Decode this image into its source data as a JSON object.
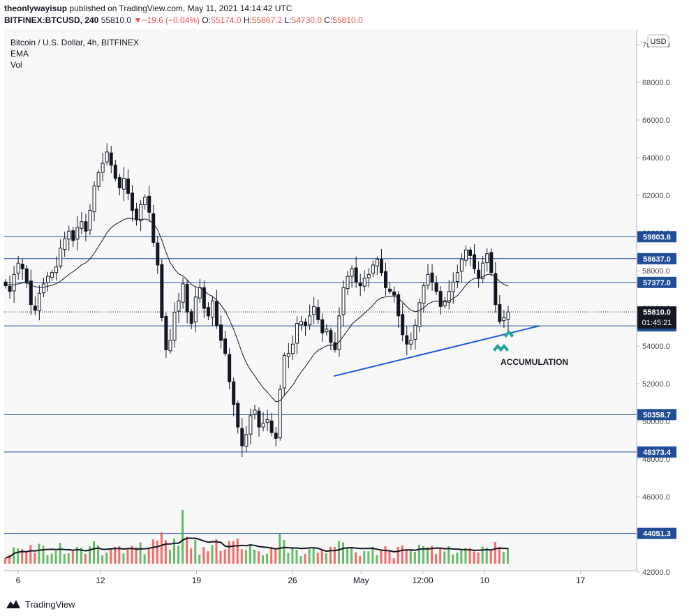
{
  "header": {
    "author": "theonlywayisup",
    "published_text": "published on TradingView.com, May 11, 2021 14:14:42 UTC",
    "symbol": "BITFINEX:BTCUSD, 240",
    "last": "55810.0",
    "change": "−19.6 (−0.04%)",
    "o_label": "O:",
    "o": "55174.0",
    "h_label": "H:",
    "h": "55867.2",
    "l_label": "L:",
    "l": "54730.0",
    "c_label": "C:",
    "c": "55810.0"
  },
  "legend": {
    "title": "Bitcoin / U.S. Dollar, 4h, BITFINEX",
    "ema": "EMA",
    "vol": "Vol"
  },
  "currency": "USD",
  "footer": {
    "brand": "TradingView",
    "icon": "tradingview-logo-icon"
  },
  "colors": {
    "hline": "#1f4e96",
    "trendline": "#1e5bd6",
    "arrow": "#26a69a",
    "vol_up": "#4caf50",
    "vol_down": "#ef5350",
    "candle": "#131722",
    "price_label_bg": "#1f4e96",
    "last_label_bg": "#131722"
  },
  "chart_data": {
    "type": "candlestick",
    "title": "Bitcoin / U.S. Dollar, 4h, BITFINEX",
    "y_ticks": [
      "70000.0",
      "68000.0",
      "66000.0",
      "64000.0",
      "62000.0",
      "60000.0",
      "58000.0",
      "56000.0",
      "54000.0",
      "52000.0",
      "50000.0",
      "48000.0",
      "46000.0",
      "44000.0",
      "42000.0"
    ],
    "ylim": [
      42000,
      70600
    ],
    "x_ticks": [
      {
        "label": "6",
        "date": "2021-04-06"
      },
      {
        "label": "12",
        "date": "2021-04-12"
      },
      {
        "label": "19",
        "date": "2021-04-19"
      },
      {
        "label": "26",
        "date": "2021-04-26"
      },
      {
        "label": "May",
        "date": "2021-05-01"
      },
      {
        "label": "12:00",
        "date": "2021-05-05 12:00"
      },
      {
        "label": "10",
        "date": "2021-05-10"
      },
      {
        "label": "17",
        "date": "2021-05-17"
      }
    ],
    "horizontal_levels": [
      "59803.8",
      "58637.0",
      "57377.0",
      "55070.8",
      "50358.7",
      "48373.4",
      "44051.3"
    ],
    "last_price": {
      "value": "55810.0",
      "countdown": "01:45:21"
    },
    "trendline": {
      "from": {
        "date": "2021-04-29",
        "price": 52400
      },
      "to": {
        "date": "2021-05-14",
        "price": 55070
      }
    },
    "annotation": "ACCUMULATION",
    "candles_close": [
      57200,
      56900,
      57800,
      58400,
      58100,
      57400,
      56200,
      55900,
      56800,
      57300,
      57700,
      57900,
      58200,
      59200,
      59700,
      60100,
      59600,
      60300,
      60600,
      60100,
      61200,
      62500,
      63200,
      63700,
      64300,
      63600,
      62900,
      62400,
      62900,
      62100,
      61200,
      60700,
      61500,
      61900,
      61100,
      59500,
      58300,
      55500,
      53800,
      54300,
      55800,
      56400,
      57300,
      55800,
      55200,
      56600,
      57100,
      56000,
      55600,
      56400,
      55100,
      54300,
      53600,
      52100,
      50900,
      49700,
      48700,
      49300,
      50300,
      50600,
      49700,
      49900,
      50100,
      49400,
      49100,
      51700,
      53500,
      53600,
      54100,
      55200,
      55300,
      55100,
      55600,
      56100,
      55400,
      54700,
      54900,
      54200,
      53800,
      55600,
      57100,
      57700,
      58100,
      57400,
      57200,
      57600,
      57800,
      58300,
      58600,
      57900,
      57100,
      56900,
      56700,
      55600,
      54600,
      54100,
      54300,
      55100,
      56300,
      57200,
      57800,
      57400,
      56900,
      56100,
      56400,
      56900,
      57400,
      57900,
      58600,
      59100,
      58800,
      58100,
      57600,
      58400,
      58900,
      57900,
      56200,
      55300,
      55500,
      55810
    ],
    "ema_values": [
      57300,
      57250,
      57250,
      57300,
      57350,
      57350,
      57250,
      57150,
      57100,
      57120,
      57170,
      57230,
      57310,
      57450,
      57620,
      57810,
      57950,
      58120,
      58310,
      58420,
      58630,
      58930,
      59280,
      59640,
      60020,
      60280,
      60460,
      60580,
      60710,
      60780,
      60770,
      60710,
      60710,
      60740,
      60690,
      60470,
      60180,
      59620,
      58970,
      58420,
      58080,
      57830,
      57720,
      57520,
      57270,
      57140,
      57100,
      56940,
      56740,
      56640,
      56430,
      56170,
      55860,
      55410,
      54880,
      54270,
      53630,
      53110,
      52730,
      52420,
      52070,
      51780,
      51550,
      51280,
      51040,
      51100,
      51380,
      51640,
      51920,
      52290,
      52630,
      52910,
      53230,
      53560,
      53770,
      53890,
      54010,
      54050,
      54030,
      54220,
      54530,
      54840,
      55160,
      55360,
      55540,
      55750,
      55950,
      56180,
      56420,
      56560,
      56610,
      56640,
      56650,
      56540,
      56330,
      56090,
      55900,
      55820,
      55880,
      56030,
      56230,
      56340,
      56390,
      56350,
      56350,
      56410,
      56520,
      56680,
      56940,
      57240,
      57460,
      57590,
      57590,
      57670,
      57800,
      57810,
      57660,
      57430,
      57270,
      57190
    ]
  }
}
